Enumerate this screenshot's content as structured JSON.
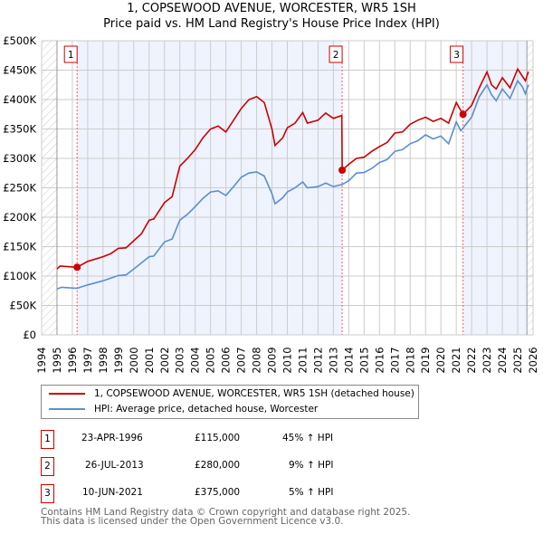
{
  "chart_data": {
    "type": "line",
    "title": "1, COPSEWOOD AVENUE, WORCESTER, WR5 1SH",
    "subtitle": "Price paid vs. HM Land Registry's House Price Index (HPI)",
    "xlim": [
      1994,
      2026
    ],
    "ylim": [
      0,
      500000
    ],
    "x_ticks": [
      "1994",
      "1995",
      "1996",
      "1997",
      "1998",
      "1999",
      "2000",
      "2001",
      "2002",
      "2003",
      "2004",
      "2005",
      "2006",
      "2007",
      "2008",
      "2009",
      "2010",
      "2011",
      "2012",
      "2013",
      "2014",
      "2015",
      "2016",
      "2017",
      "2018",
      "2019",
      "2020",
      "2021",
      "2022",
      "2023",
      "2024",
      "2025",
      "2026"
    ],
    "y_ticks": [
      "£0",
      "£50K",
      "£100K",
      "£150K",
      "£200K",
      "£250K",
      "£300K",
      "£350K",
      "£400K",
      "£450K",
      "£500K"
    ],
    "grid": true,
    "series": [
      {
        "name": "1, COPSEWOOD AVENUE, WORCESTER, WR5 1SH (detached house)",
        "color": "#cc0000",
        "x": [
          1995,
          1995.2,
          1996.3,
          1997,
          1998,
          1998.5,
          1999,
          1999.5,
          2000,
          2000.5,
          2001,
          2001.3,
          2002,
          2002.5,
          2003,
          2003.5,
          2004,
          2004.5,
          2005,
          2005.5,
          2006,
          2006.5,
          2007,
          2007.5,
          2008,
          2008.5,
          2009,
          2009.2,
          2009.7,
          2010,
          2010.5,
          2011,
          2011.3,
          2012,
          2012.5,
          2013,
          2013.55,
          2013.57,
          2014,
          2014.5,
          2015,
          2015.5,
          2016,
          2016.5,
          2017,
          2017.5,
          2018,
          2018.5,
          2019,
          2019.5,
          2020,
          2020.5,
          2021,
          2021.44,
          2022,
          2022.5,
          2023,
          2023.3,
          2023.6,
          2024,
          2024.5,
          2025,
          2025.3,
          2025.5,
          2025.7
        ],
        "y": [
          112,
          117,
          115,
          125,
          133,
          138,
          147,
          148,
          160,
          172,
          195,
          197,
          225,
          235,
          287,
          300,
          315,
          335,
          350,
          355,
          345,
          365,
          385,
          400,
          405,
          395,
          350,
          322,
          335,
          352,
          360,
          378,
          360,
          365,
          377,
          368,
          373,
          280,
          290,
          300,
          302,
          312,
          320,
          327,
          343,
          345,
          358,
          365,
          370,
          363,
          368,
          360,
          395,
          375,
          390,
          420,
          447,
          425,
          418,
          437,
          420,
          452,
          440,
          432,
          447
        ]
      },
      {
        "name": "HPI: Average price, detached house, Worcester",
        "color": "#5b8fd0",
        "x": [
          1995,
          1995.3,
          1996.3,
          1997,
          1998,
          1999,
          1999.5,
          2000,
          2001,
          2001.3,
          2002,
          2002.5,
          2003,
          2003.5,
          2004,
          2004.5,
          2005,
          2005.5,
          2006,
          2006.5,
          2007,
          2007.5,
          2008,
          2008.5,
          2009,
          2009.2,
          2009.7,
          2010,
          2010.5,
          2011,
          2011.3,
          2012,
          2012.5,
          2013,
          2013.6,
          2014,
          2014.5,
          2015,
          2015.5,
          2016,
          2016.5,
          2017,
          2017.5,
          2018,
          2018.5,
          2019,
          2019.5,
          2020,
          2020.5,
          2021,
          2021.3,
          2022,
          2022.5,
          2023,
          2023.3,
          2023.6,
          2024,
          2024.5,
          2025,
          2025.3,
          2025.5,
          2025.7
        ],
        "y": [
          78,
          81,
          79,
          85,
          92,
          101,
          102,
          112,
          133,
          134,
          158,
          163,
          195,
          205,
          218,
          232,
          243,
          245,
          237,
          252,
          268,
          275,
          277,
          270,
          240,
          223,
          233,
          243,
          250,
          260,
          250,
          252,
          258,
          252,
          256,
          262,
          275,
          276,
          283,
          293,
          298,
          312,
          315,
          325,
          330,
          340,
          333,
          338,
          325,
          362,
          347,
          370,
          405,
          425,
          408,
          398,
          418,
          402,
          432,
          422,
          410,
          425
        ]
      }
    ],
    "y_units": "thousands GBP",
    "sales": [
      {
        "label": "1",
        "x": 1996.31,
        "value": 115
      },
      {
        "label": "2",
        "x": 2013.57,
        "value": 280
      },
      {
        "label": "3",
        "x": 2021.44,
        "value": 375
      }
    ],
    "legend_position": "below"
  },
  "table": [
    {
      "num": "1",
      "date": "23-APR-1996",
      "price": "£115,000",
      "hpi": "45% ↑ HPI"
    },
    {
      "num": "2",
      "date": "26-JUL-2013",
      "price": "£280,000",
      "hpi": "9% ↑ HPI"
    },
    {
      "num": "3",
      "date": "10-JUN-2021",
      "price": "£375,000",
      "hpi": "5% ↑ HPI"
    }
  ],
  "footer": [
    "Contains HM Land Registry data © Crown copyright and database right 2025.",
    "This data is licensed under the Open Government Licence v3.0."
  ]
}
